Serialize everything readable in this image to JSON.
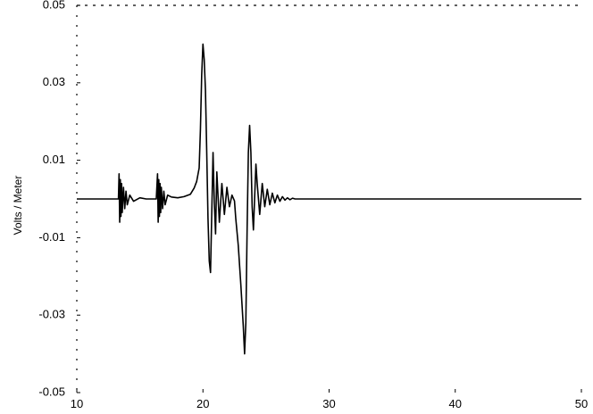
{
  "chart_data": {
    "type": "line",
    "title": "",
    "xlabel": "",
    "ylabel": "Volts / Meter",
    "xlim": [
      10,
      50
    ],
    "ylim": [
      -0.05,
      0.05
    ],
    "x_ticks": [
      10,
      20,
      30,
      40,
      50
    ],
    "x_tick_labels": [
      "10",
      "20",
      "30",
      "40",
      "50"
    ],
    "y_ticks": [
      0.05,
      0.03,
      0.01,
      -0.01,
      -0.03,
      -0.05
    ],
    "y_tick_labels": [
      "0.05",
      "0.03",
      "0.01",
      "-0.01",
      "-0.03",
      "-0.05"
    ],
    "grid": false,
    "series": [
      {
        "color": "#000000",
        "x": [
          10,
          13.2,
          13.3,
          13.35,
          13.4,
          13.45,
          13.5,
          13.55,
          13.6,
          13.7,
          13.8,
          13.9,
          14,
          14.2,
          14.5,
          15,
          15.5,
          16,
          16.3,
          16.4,
          16.45,
          16.5,
          16.55,
          16.6,
          16.65,
          16.7,
          16.8,
          16.9,
          17,
          17.2,
          17.5,
          18,
          18.5,
          19,
          19.3,
          19.5,
          19.7,
          19.8,
          19.9,
          20,
          20.1,
          20.2,
          20.3,
          20.4,
          20.5,
          20.6,
          20.8,
          20.9,
          21,
          21.1,
          21.3,
          21.5,
          21.7,
          21.9,
          22.1,
          22.3,
          22.5,
          22.6,
          22.8,
          23.0,
          23.2,
          23.3,
          23.4,
          23.5,
          23.6,
          23.7,
          23.8,
          23.9,
          24.0,
          24.2,
          24.3,
          24.5,
          24.7,
          24.9,
          25.1,
          25.3,
          25.5,
          25.7,
          25.9,
          26.1,
          26.3,
          26.5,
          26.7,
          26.9,
          27.1,
          27.3,
          27.5,
          28,
          29,
          30,
          35,
          40,
          45,
          50
        ],
        "y": [
          0,
          0,
          0,
          0.0065,
          -0.006,
          0.005,
          -0.0045,
          0.004,
          -0.0035,
          0.003,
          -0.0025,
          0.002,
          -0.0015,
          0.001,
          -0.0006,
          0.0003,
          0,
          0,
          0,
          0.0065,
          -0.006,
          0.005,
          -0.0045,
          0.004,
          -0.0035,
          0.003,
          -0.0025,
          0.002,
          -0.0015,
          0.001,
          0.0005,
          0.0003,
          0.0006,
          0.0012,
          0.0028,
          0.0045,
          0.008,
          0.018,
          0.032,
          0.04,
          0.036,
          0.028,
          0.012,
          -0.005,
          -0.016,
          -0.019,
          0.012,
          -0.001,
          -0.009,
          0.007,
          -0.006,
          0.004,
          -0.004,
          0.003,
          -0.002,
          0.001,
          -0.0005,
          -0.005,
          -0.012,
          -0.022,
          -0.033,
          -0.04,
          -0.032,
          -0.008,
          0.012,
          0.019,
          0.012,
          -0.002,
          -0.008,
          0.009,
          0.004,
          -0.004,
          0.004,
          -0.002,
          0.0025,
          -0.0015,
          0.0015,
          -0.001,
          0.001,
          -0.0006,
          0.0006,
          -0.0003,
          0.0003,
          -0.0002,
          0.0002,
          0,
          0,
          0,
          0,
          0,
          0,
          0,
          0,
          0
        ]
      }
    ]
  }
}
